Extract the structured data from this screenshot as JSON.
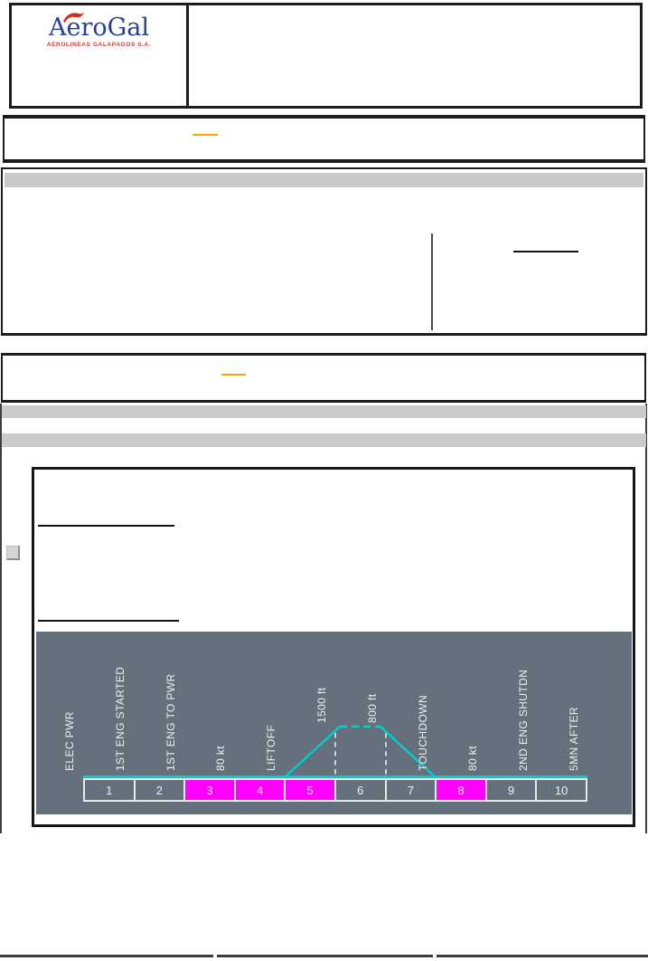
{
  "header": {
    "brand": "AeroGal",
    "subtitle": "AEROLINEAS GALAPAGOS S.A.",
    "brand_color": "#23409A",
    "subtitle_color": "#D03A34",
    "bird_icon_color": "#D42B1E"
  },
  "links": {
    "color": "#FFA300"
  },
  "diagram": {
    "type": "flight-phase-timeline",
    "background_color": "#64707C",
    "path_color": "#00CFCF",
    "highlight_color": "#FF00FF",
    "phases": [
      {
        "num": "1",
        "highlight": false
      },
      {
        "num": "2",
        "highlight": false
      },
      {
        "num": "3",
        "highlight": true
      },
      {
        "num": "4",
        "highlight": true
      },
      {
        "num": "5",
        "highlight": true
      },
      {
        "num": "6",
        "highlight": false
      },
      {
        "num": "7",
        "highlight": false
      },
      {
        "num": "8",
        "highlight": true
      },
      {
        "num": "9",
        "highlight": false
      },
      {
        "num": "10",
        "highlight": false
      }
    ],
    "milestones": [
      {
        "label": "ELEC PWR",
        "boundary": 0,
        "elevated": false
      },
      {
        "label": "1ST ENG STARTED",
        "boundary": 1,
        "elevated": false
      },
      {
        "label": "1ST ENG TO PWR",
        "boundary": 2,
        "elevated": false
      },
      {
        "label": "80 kt",
        "boundary": 3,
        "elevated": false
      },
      {
        "label": "LIFTOFF",
        "boundary": 4,
        "elevated": false
      },
      {
        "label": "1500 ft",
        "boundary": 5,
        "elevated": true
      },
      {
        "label": "800 ft",
        "boundary": 6,
        "elevated": true
      },
      {
        "label": "TOUCHDOWN",
        "boundary": 7,
        "elevated": false
      },
      {
        "label": "80 kt",
        "boundary": 8,
        "elevated": false
      },
      {
        "label": "2ND ENG SHUTDN",
        "boundary": 9,
        "elevated": false
      },
      {
        "label": "5MN AFTER",
        "boundary": 10,
        "elevated": false
      }
    ]
  }
}
